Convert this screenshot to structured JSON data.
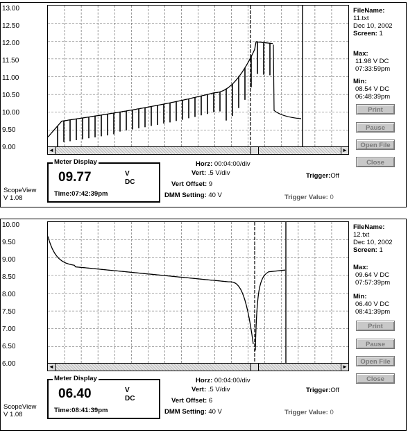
{
  "panels": [
    {
      "y_labels": [
        "13.00",
        "12.50",
        "12.00",
        "11.50",
        "11.00",
        "10.50",
        "10.00",
        "9.50",
        "9.00"
      ],
      "file_label": "FileName:",
      "file_name": "11.txt",
      "date": "Dec 10, 2002",
      "screen_label": "Screen:",
      "screen_value": "1",
      "max_label": "Max:",
      "max_value": "11.98 V DC",
      "max_time": "07:33:59pm",
      "min_label": "Min:",
      "min_value": "08.54 V DC",
      "min_time": "06:48:39pm",
      "buttons": {
        "print": "Print",
        "pause": "Pause",
        "open": "Open File",
        "close": "Close"
      },
      "meter_title": "Meter Display",
      "meter_value": "09.77",
      "meter_unit1": "V",
      "meter_unit2": "DC",
      "meter_time_label": "Time:",
      "meter_time": "07:42:39pm",
      "horz_label": "Horz:",
      "horz_value": "00:04:00/div",
      "vert_label": "Vert:",
      "vert_value": ".5 V/div",
      "offset_label": "Vert Offset:",
      "offset_value": "9",
      "dmm_label": "DMM Setting:",
      "dmm_value": "40  V",
      "trigger_label": "Trigger:",
      "trigger_value": "Off",
      "trigval_label": "Trigger Value:",
      "trigval_value": "0",
      "app_name": "ScopeView",
      "app_version": "V 1.08"
    },
    {
      "y_labels": [
        "10.00",
        "9.50",
        "9.00",
        "8.50",
        "8.00",
        "7.50",
        "7.00",
        "6.50",
        "6.00"
      ],
      "file_label": "FileName:",
      "file_name": "12.txt",
      "date": "Dec 10, 2002",
      "screen_label": "Screen:",
      "screen_value": "1",
      "max_label": "Max:",
      "max_value": "09.64 V DC",
      "max_time": "07:57:39pm",
      "min_label": "Min:",
      "min_value": "06.40 V DC",
      "min_time": "08:41:39pm",
      "buttons": {
        "print": "Print",
        "pause": "Pause",
        "open": "Open File",
        "close": "Close"
      },
      "meter_title": "Meter Display",
      "meter_value": "06.40",
      "meter_unit1": "V",
      "meter_unit2": "DC",
      "meter_time_label": "Time:",
      "meter_time": "08:41:39pm",
      "horz_label": "Horz:",
      "horz_value": "00:04:00/div",
      "vert_label": "Vert:",
      "vert_value": ".5 V/div",
      "offset_label": "Vert Offset:",
      "offset_value": "6",
      "dmm_label": "DMM Setting:",
      "dmm_value": "40  V",
      "trigger_label": "Trigger:",
      "trigger_value": "Off",
      "trigval_label": "Trigger Value:",
      "trigval_value": "0",
      "app_name": "ScopeView",
      "app_version": "V 1.08"
    }
  ],
  "icons": {
    "scroll_left": "scroll-left-arrow-icon",
    "scroll_right": "scroll-right-arrow-icon"
  }
}
